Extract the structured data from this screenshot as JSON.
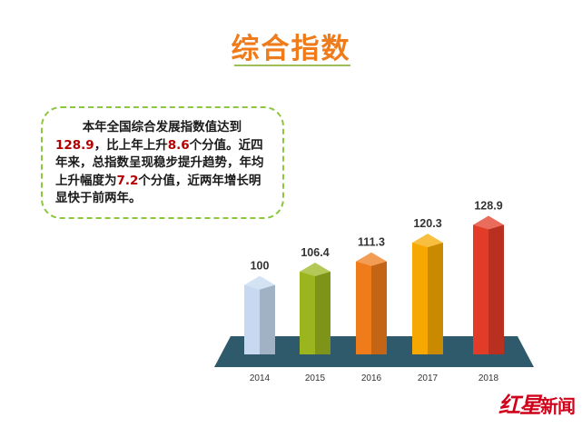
{
  "page": {
    "title": "综合指数",
    "note": {
      "p1": "本年全国综合发展指数值达到",
      "v1": "128.9",
      "p2": "，比上年上升",
      "v2": "8.6",
      "p3": "个分值。近四年来，总指数呈现稳步提升趋势，年均上升幅度为",
      "v3": "7.2",
      "p4": "个分值，近两年增长明显快于前两年。"
    },
    "logo": {
      "red": "红星",
      "news": "新闻"
    }
  },
  "colors": {
    "title": "#ef7b1a",
    "base": "#2e5a6b",
    "highlight": "#b30000",
    "bars": [
      "#c6d9f0",
      "#9ab51e",
      "#ef7b1a",
      "#f6a800",
      "#e23b27"
    ]
  },
  "chart_data": {
    "type": "bar",
    "title": "",
    "xlabel": "",
    "ylabel": "",
    "categories": [
      "2014",
      "2015",
      "2016",
      "2017",
      "2018"
    ],
    "values": [
      100,
      106.4,
      111.3,
      120.3,
      128.9
    ],
    "value_labels": [
      "100",
      "106.4",
      "111.3",
      "120.3",
      "128.9"
    ],
    "grid": false,
    "legend": "none"
  }
}
